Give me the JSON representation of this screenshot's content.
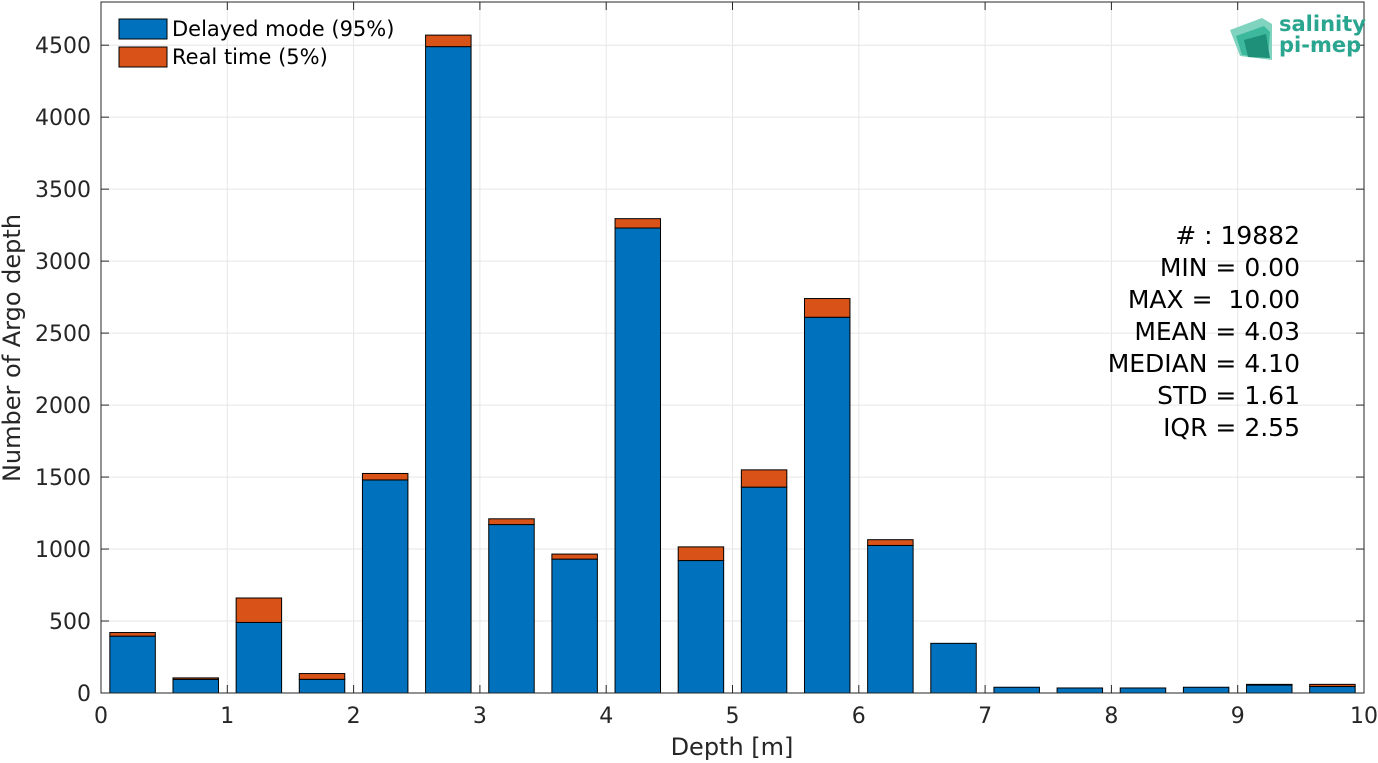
{
  "chart_data": {
    "type": "bar",
    "stacked": true,
    "xlabel": "Depth [m]",
    "ylabel": "Number of Argo depth",
    "xlim": [
      0,
      10
    ],
    "ylim": [
      0,
      4800
    ],
    "xticks": [
      0,
      1,
      2,
      3,
      4,
      5,
      6,
      7,
      8,
      9,
      10
    ],
    "yticks": [
      0,
      500,
      1000,
      1500,
      2000,
      2500,
      3000,
      3500,
      4000,
      4500
    ],
    "grid": true,
    "legend_position": "top-left",
    "bin_centers": [
      0.25,
      0.75,
      1.25,
      1.75,
      2.25,
      2.75,
      3.25,
      3.75,
      4.25,
      4.75,
      5.25,
      5.75,
      6.25,
      6.75,
      7.25,
      7.75,
      8.25,
      8.75,
      9.25,
      9.75
    ],
    "bar_width": 0.36,
    "series": [
      {
        "name": "Delayed mode (95%)",
        "color": "#0072BD",
        "values": [
          395,
          95,
          490,
          95,
          1480,
          4490,
          1170,
          930,
          3230,
          920,
          1430,
          2610,
          1025,
          345,
          40,
          35,
          35,
          40,
          55,
          45
        ]
      },
      {
        "name": "Real time (5%)",
        "color": "#D95319",
        "values": [
          25,
          10,
          170,
          40,
          45,
          80,
          40,
          35,
          65,
          95,
          120,
          130,
          40,
          0,
          0,
          0,
          0,
          0,
          5,
          15
        ]
      }
    ],
    "annotations": [
      "# : 19882",
      "MIN = 0.00",
      "MAX =  10.00",
      "MEAN = 4.03",
      "MEDIAN = 4.10",
      "STD = 1.61",
      "IQR = 2.55"
    ]
  },
  "logo": {
    "line1": "salinity",
    "line2": "pi-mep",
    "icon": "salinity-pimep-logo-icon"
  }
}
